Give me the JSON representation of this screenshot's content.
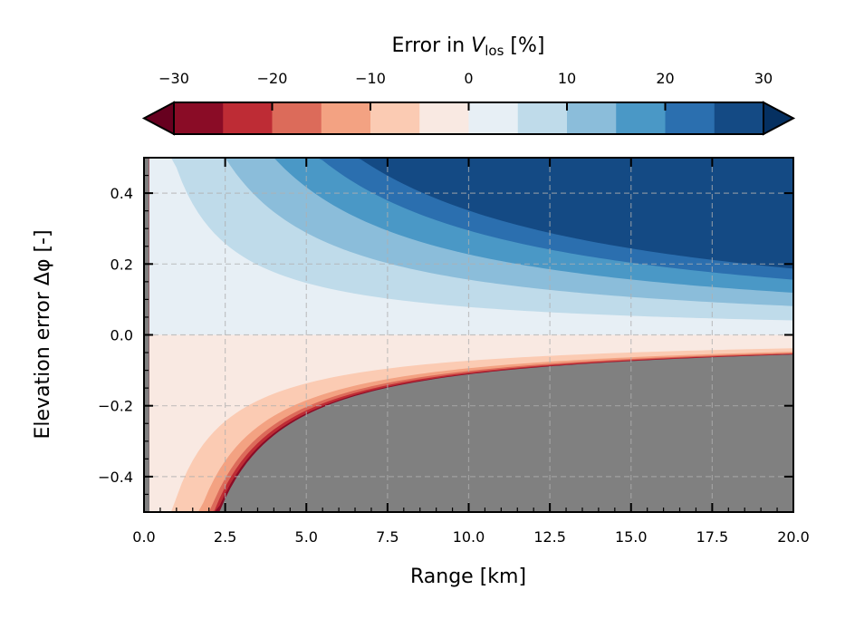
{
  "chart_data": {
    "type": "contourf",
    "xlabel": "Range [km]",
    "ylabel": "Elevation error Δφ [-]",
    "xlim": [
      0,
      20
    ],
    "ylim": [
      -0.5,
      0.5
    ],
    "xticks": [
      "0.0",
      "2.5",
      "5.0",
      "7.5",
      "10.0",
      "12.5",
      "15.0",
      "17.5",
      "20.0"
    ],
    "xtick_values": [
      0,
      2.5,
      5,
      7.5,
      10,
      12.5,
      15,
      17.5,
      20
    ],
    "yticks": [
      "0.4",
      "0.2",
      "0.0",
      "−0.2",
      "−0.4"
    ],
    "ytick_values": [
      0.4,
      0.2,
      0,
      -0.2,
      -0.4
    ],
    "grid": true,
    "mask_color": "#808080",
    "contour_levels_pct": [
      -5,
      -10,
      -15,
      -20,
      -25,
      -30,
      5,
      10,
      15,
      20,
      25,
      30
    ],
    "colorbar": {
      "label_prefix": "Error in ",
      "label_var": "V",
      "label_sub": "los",
      "label_suffix": " [%]",
      "ticks": [
        "−30",
        "−20",
        "−10",
        "0",
        "10",
        "20",
        "30"
      ],
      "tick_values": [
        -30,
        -20,
        -10,
        0,
        10,
        20,
        30
      ],
      "range": [
        -30,
        30
      ],
      "step": 5,
      "extend": "both",
      "under_color": "#67001f",
      "over_color": "#053061",
      "colors": [
        "#8a0c26",
        "#be2c35",
        "#dc6b5a",
        "#f3a282",
        "#fbcbb3",
        "#f9e9e2",
        "#e7eff5",
        "#bfdbea",
        "#8bbdda",
        "#4a98c6",
        "#2b6faf",
        "#144a84"
      ]
    }
  }
}
